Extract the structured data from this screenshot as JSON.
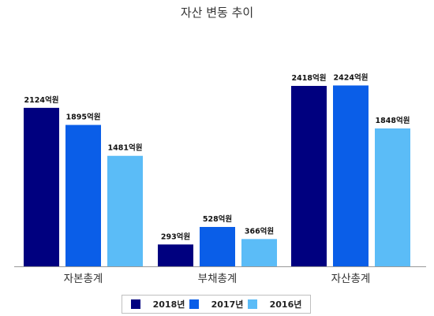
{
  "chart_data": {
    "type": "bar",
    "title": "자산 변동 추이",
    "categories": [
      "자본총계",
      "부채총계",
      "자산총계"
    ],
    "series": [
      {
        "name": "2018년",
        "color": "#00007f",
        "values": [
          2124,
          293,
          2418
        ],
        "labels": [
          "2124억원",
          "293억원",
          "2418억원"
        ]
      },
      {
        "name": "2017년",
        "color": "#0a5ee8",
        "values": [
          1895,
          528,
          2424
        ],
        "labels": [
          "1895억원",
          "528억원",
          "2424억원"
        ]
      },
      {
        "name": "2016년",
        "color": "#5bbcf7",
        "values": [
          1481,
          366,
          1848
        ],
        "labels": [
          "1481억원",
          "366억원",
          "1848억원"
        ]
      }
    ],
    "ylim": [
      0,
      2500
    ],
    "grid": false,
    "legend_position": "bottom"
  }
}
